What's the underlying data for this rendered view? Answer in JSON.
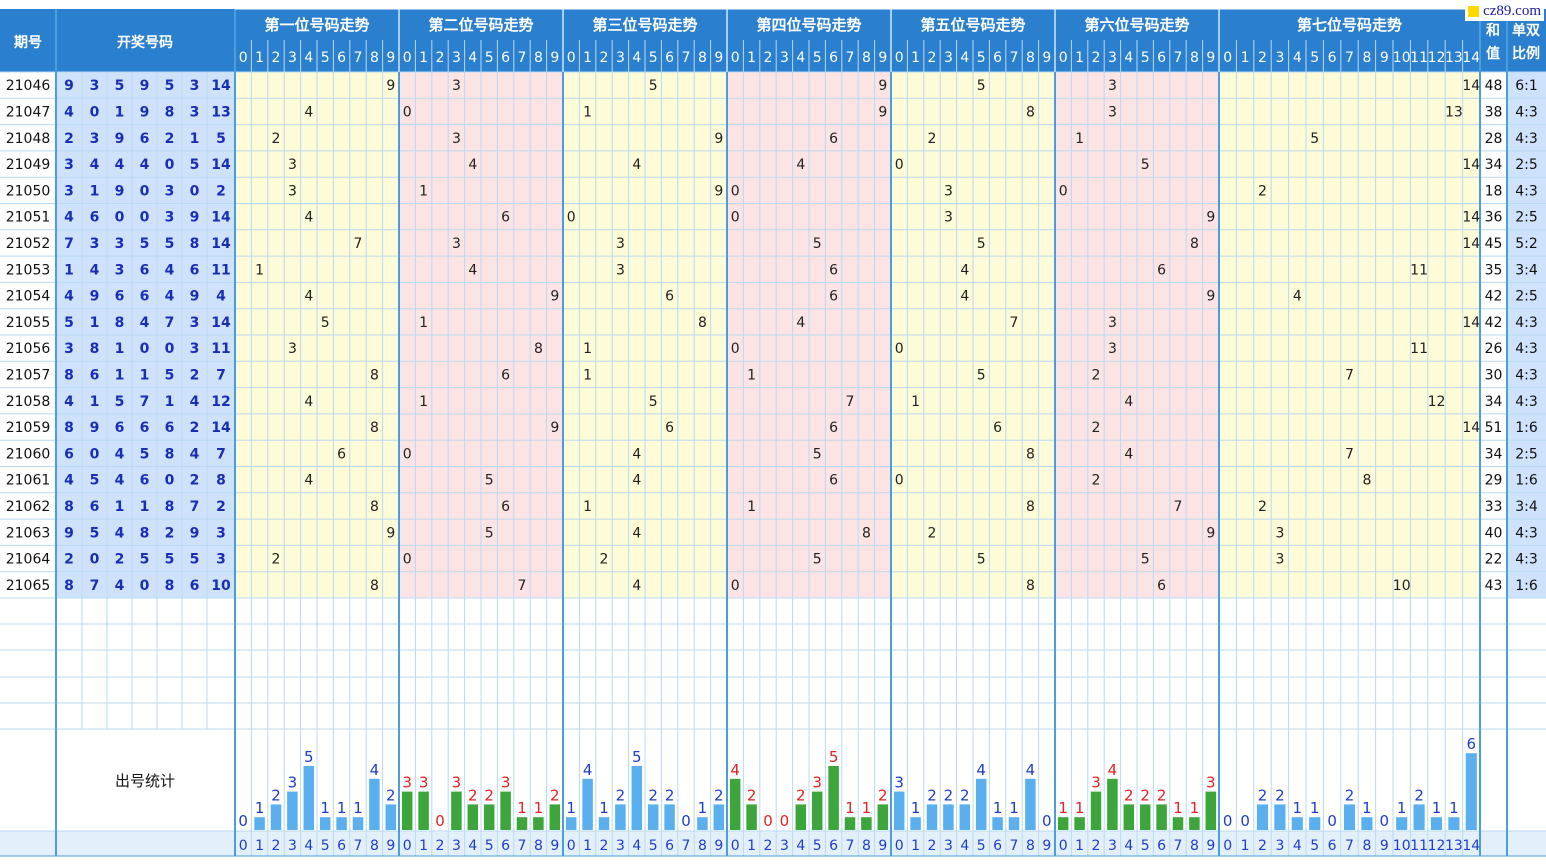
{
  "header": {
    "period_label": "期号",
    "draw_label": "开奖号码",
    "sum_label": "和值",
    "ratio_label": "单双比例",
    "zones": [
      {
        "title": "第一位号码走势",
        "digits": 10,
        "bg": "#fdfbd8"
      },
      {
        "title": "第二位号码走势",
        "digits": 10,
        "bg": "#fde4e4"
      },
      {
        "title": "第三位号码走势",
        "digits": 10,
        "bg": "#fdfbd8"
      },
      {
        "title": "第四位号码走势",
        "digits": 10,
        "bg": "#fde4e4"
      },
      {
        "title": "第五位号码走势",
        "digits": 10,
        "bg": "#fdfbd8"
      },
      {
        "title": "第六位号码走势",
        "digits": 10,
        "bg": "#fde4e4"
      },
      {
        "title": "第七位号码走势",
        "digits": 15,
        "bg": "#fdfbd8"
      }
    ]
  },
  "logo": "cz89.com",
  "stats_label": "出号统计",
  "colors": {
    "header_bg": "#2a7fcf",
    "zone_line": "#4a9ede",
    "grid_line": "#b9d9f2",
    "draw_bg": "#cfe2fb",
    "number_blue": "#1a2db5",
    "bar_blue": "#5ab0ef",
    "bar_green": "#3ca53c",
    "count_red": "#e52222",
    "count_blue": "#1e3cd2"
  },
  "rows": [
    {
      "period": "21046",
      "nums": [
        9,
        3,
        5,
        9,
        5,
        3,
        14
      ],
      "sum": 48,
      "ratio": "6:1"
    },
    {
      "period": "21047",
      "nums": [
        4,
        0,
        1,
        9,
        8,
        3,
        13
      ],
      "sum": 38,
      "ratio": "4:3"
    },
    {
      "period": "21048",
      "nums": [
        2,
        3,
        9,
        6,
        2,
        1,
        5
      ],
      "sum": 28,
      "ratio": "4:3"
    },
    {
      "period": "21049",
      "nums": [
        3,
        4,
        4,
        4,
        0,
        5,
        14
      ],
      "sum": 34,
      "ratio": "2:5"
    },
    {
      "period": "21050",
      "nums": [
        3,
        1,
        9,
        0,
        3,
        0,
        2
      ],
      "sum": 18,
      "ratio": "4:3"
    },
    {
      "period": "21051",
      "nums": [
        4,
        6,
        0,
        0,
        3,
        9,
        14
      ],
      "sum": 36,
      "ratio": "2:5"
    },
    {
      "period": "21052",
      "nums": [
        7,
        3,
        3,
        5,
        5,
        8,
        14
      ],
      "sum": 45,
      "ratio": "5:2"
    },
    {
      "period": "21053",
      "nums": [
        1,
        4,
        3,
        6,
        4,
        6,
        11
      ],
      "sum": 35,
      "ratio": "3:4"
    },
    {
      "period": "21054",
      "nums": [
        4,
        9,
        6,
        6,
        4,
        9,
        4
      ],
      "sum": 42,
      "ratio": "2:5"
    },
    {
      "period": "21055",
      "nums": [
        5,
        1,
        8,
        4,
        7,
        3,
        14
      ],
      "sum": 42,
      "ratio": "4:3"
    },
    {
      "period": "21056",
      "nums": [
        3,
        8,
        1,
        0,
        0,
        3,
        11
      ],
      "sum": 26,
      "ratio": "4:3"
    },
    {
      "period": "21057",
      "nums": [
        8,
        6,
        1,
        1,
        5,
        2,
        7
      ],
      "sum": 30,
      "ratio": "4:3"
    },
    {
      "period": "21058",
      "nums": [
        4,
        1,
        5,
        7,
        1,
        4,
        12
      ],
      "sum": 34,
      "ratio": "4:3"
    },
    {
      "period": "21059",
      "nums": [
        8,
        9,
        6,
        6,
        6,
        2,
        14
      ],
      "sum": 51,
      "ratio": "1:6"
    },
    {
      "period": "21060",
      "nums": [
        6,
        0,
        4,
        5,
        8,
        4,
        7
      ],
      "sum": 34,
      "ratio": "2:5"
    },
    {
      "period": "21061",
      "nums": [
        4,
        5,
        4,
        6,
        0,
        2,
        8
      ],
      "sum": 29,
      "ratio": "1:6"
    },
    {
      "period": "21062",
      "nums": [
        8,
        6,
        1,
        1,
        8,
        7,
        2
      ],
      "sum": 33,
      "ratio": "3:4"
    },
    {
      "period": "21063",
      "nums": [
        9,
        5,
        4,
        8,
        2,
        9,
        3
      ],
      "sum": 40,
      "ratio": "4:3"
    },
    {
      "period": "21064",
      "nums": [
        2,
        0,
        2,
        5,
        5,
        5,
        3
      ],
      "sum": 22,
      "ratio": "4:3"
    },
    {
      "period": "21065",
      "nums": [
        8,
        7,
        4,
        0,
        8,
        6,
        10
      ],
      "sum": 43,
      "ratio": "1:6"
    }
  ],
  "chart_data": {
    "type": "bar",
    "title": "出号统计",
    "series": [
      {
        "name": "第一位号码走势",
        "categories": [
          "0",
          "1",
          "2",
          "3",
          "4",
          "5",
          "6",
          "7",
          "8",
          "9"
        ],
        "values": [
          0,
          1,
          2,
          3,
          5,
          1,
          1,
          1,
          4,
          2
        ]
      },
      {
        "name": "第二位号码走势",
        "categories": [
          "0",
          "1",
          "2",
          "3",
          "4",
          "5",
          "6",
          "7",
          "8",
          "9"
        ],
        "values": [
          3,
          3,
          0,
          3,
          2,
          2,
          3,
          1,
          1,
          2
        ]
      },
      {
        "name": "第三位号码走势",
        "categories": [
          "0",
          "1",
          "2",
          "3",
          "4",
          "5",
          "6",
          "7",
          "8",
          "9"
        ],
        "values": [
          1,
          4,
          1,
          2,
          5,
          2,
          2,
          0,
          1,
          2
        ]
      },
      {
        "name": "第四位号码走势",
        "categories": [
          "0",
          "1",
          "2",
          "3",
          "4",
          "5",
          "6",
          "7",
          "8",
          "9"
        ],
        "values": [
          4,
          2,
          0,
          0,
          2,
          3,
          5,
          1,
          1,
          2
        ]
      },
      {
        "name": "第五位号码走势",
        "categories": [
          "0",
          "1",
          "2",
          "3",
          "4",
          "5",
          "6",
          "7",
          "8",
          "9"
        ],
        "values": [
          3,
          1,
          2,
          2,
          2,
          4,
          1,
          1,
          4,
          0
        ]
      },
      {
        "name": "第六位号码走势",
        "categories": [
          "0",
          "1",
          "2",
          "3",
          "4",
          "5",
          "6",
          "7",
          "8",
          "9"
        ],
        "values": [
          1,
          1,
          3,
          4,
          2,
          2,
          2,
          1,
          1,
          3
        ]
      },
      {
        "name": "第七位号码走势",
        "categories": [
          "0",
          "1",
          "2",
          "3",
          "4",
          "5",
          "6",
          "7",
          "8",
          "9",
          "10",
          "11",
          "12",
          "13",
          "14"
        ],
        "values": [
          0,
          0,
          2,
          2,
          1,
          1,
          0,
          2,
          1,
          0,
          1,
          2,
          1,
          1,
          6
        ]
      }
    ],
    "bar_color_by_zone": [
      "#5ab0ef",
      "#3ca53c",
      "#5ab0ef",
      "#3ca53c",
      "#5ab0ef",
      "#3ca53c",
      "#5ab0ef"
    ],
    "ylim": [
      0,
      6
    ]
  }
}
